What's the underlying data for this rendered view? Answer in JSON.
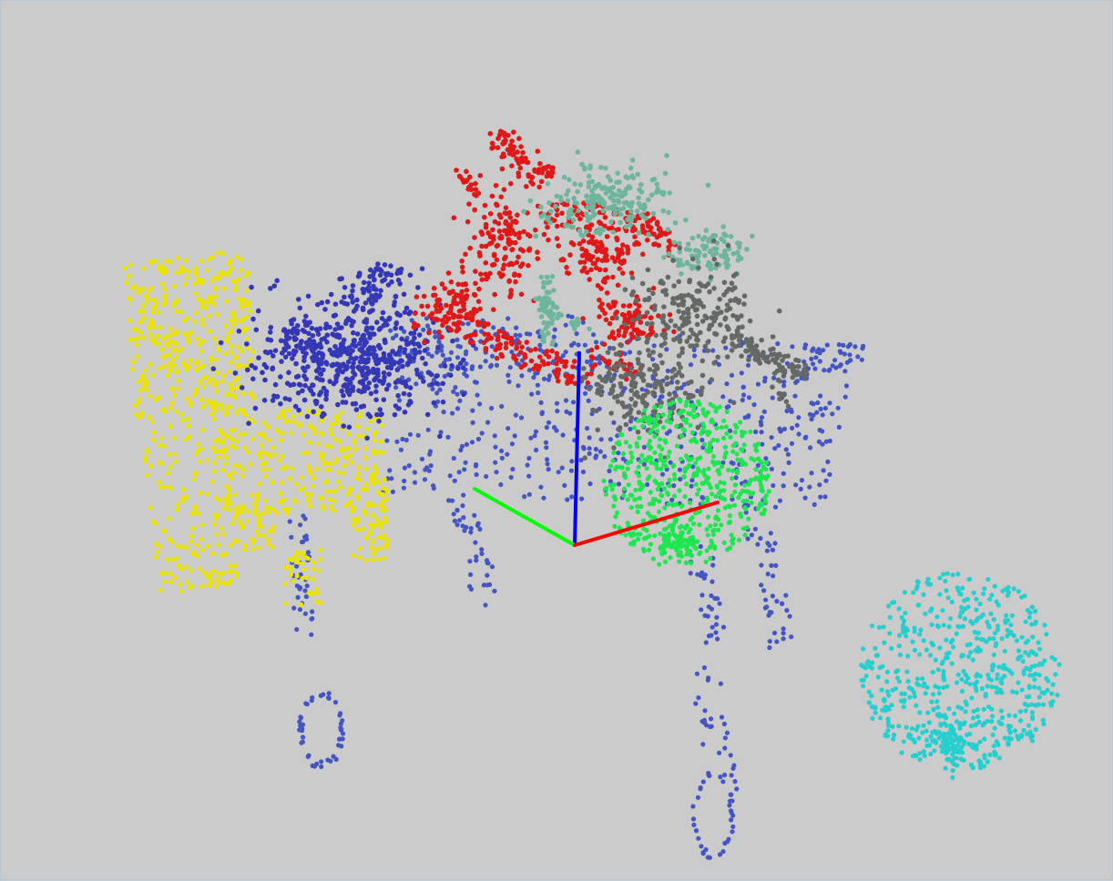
{
  "viewer": {
    "background_color": "#cbcbcb",
    "border_color": "#b8c6d2"
  },
  "axes": {
    "x_axis_color": "#ff0000",
    "y_axis_color": "#00ff00",
    "z_axis_color": "#0000ff"
  },
  "objects": [
    {
      "name": "table",
      "color": "#4455c4",
      "shape": "table-point-cloud"
    },
    {
      "name": "chair",
      "color": "#ebe300",
      "shape": "chair-point-cloud"
    },
    {
      "name": "stuffed-toy",
      "color": "#3538b6",
      "shape": "blob-point-cloud"
    },
    {
      "name": "plant",
      "color": "#e01818",
      "shape": "branching-point-cloud"
    },
    {
      "name": "teal-object",
      "color": "#6fb59e",
      "shape": "branching-point-cloud"
    },
    {
      "name": "gray-object",
      "color": "#656965",
      "shape": "branching-point-cloud"
    },
    {
      "name": "green-sphere",
      "color": "#1ee650",
      "shape": "sphere-point-cloud"
    },
    {
      "name": "cyan-sphere",
      "color": "#25cfcf",
      "shape": "sphere-point-cloud"
    }
  ]
}
